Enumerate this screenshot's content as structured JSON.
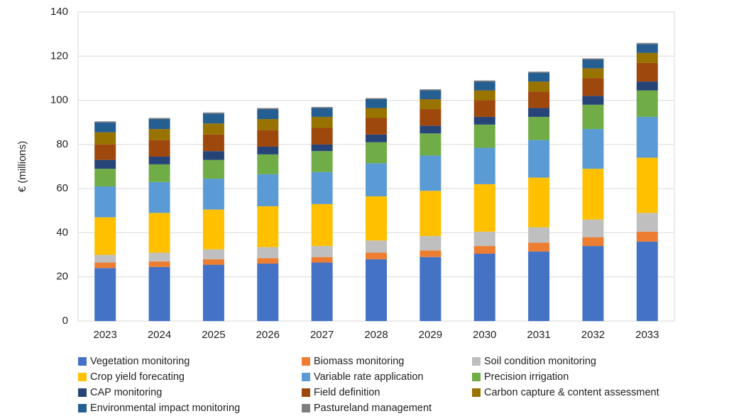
{
  "chart_data": {
    "type": "stacked_bar",
    "y_label": "€ (millions)",
    "categories": [
      "2023",
      "2024",
      "2025",
      "2026",
      "2027",
      "2028",
      "2029",
      "2030",
      "2031",
      "2032",
      "2033"
    ],
    "ylim": [
      0,
      140
    ],
    "yticks": [
      0,
      20,
      40,
      60,
      80,
      100,
      120,
      140
    ],
    "grid": true,
    "series": [
      {
        "name": "Vegetation monitoring",
        "color": "#4472c4",
        "values": [
          24,
          24.5,
          25.5,
          26,
          26.5,
          28,
          29,
          30.5,
          31.5,
          34,
          36
        ]
      },
      {
        "name": "Biomass monitoring",
        "color": "#ed7d31",
        "values": [
          2.5,
          2.5,
          2.5,
          2.5,
          2.5,
          3,
          3,
          3.5,
          4,
          4,
          4.5
        ]
      },
      {
        "name": "Soil condition monitoring",
        "color": "#bfbfbf",
        "values": [
          3.5,
          4,
          4.5,
          5,
          5,
          5.5,
          6.5,
          6.5,
          7,
          8,
          8.5
        ]
      },
      {
        "name": "Crop yield forecating",
        "color": "#ffc000",
        "values": [
          17,
          18,
          18,
          18.5,
          19,
          20,
          20.5,
          21.5,
          22.5,
          23,
          25
        ]
      },
      {
        "name": "Variable rate application",
        "color": "#5b9bd5",
        "values": [
          14,
          14,
          14,
          14.5,
          14.5,
          15,
          16,
          16.5,
          17,
          18,
          18.5
        ]
      },
      {
        "name": "Precision irrigation",
        "color": "#70ad47",
        "values": [
          8,
          8,
          8.5,
          9,
          9.5,
          9.5,
          10,
          10.5,
          10.5,
          11,
          12
        ]
      },
      {
        "name": "CAP monitoring",
        "color": "#264478",
        "values": [
          4,
          3.5,
          4,
          3.5,
          3,
          3.5,
          3.5,
          3.5,
          4,
          4,
          4
        ]
      },
      {
        "name": "Field definition",
        "color": "#9e480e",
        "values": [
          7,
          7.5,
          7.5,
          7.5,
          7.5,
          7.5,
          7.5,
          7.5,
          7.5,
          8,
          8.5
        ]
      },
      {
        "name": "Carbon capture & content assessment",
        "color": "#997300",
        "values": [
          5.5,
          5,
          5,
          5,
          5,
          4.5,
          4.5,
          4.5,
          4.5,
          4.5,
          4.5
        ]
      },
      {
        "name": "Environmental impact monitoring",
        "color": "#255e91",
        "values": [
          4.5,
          4.5,
          4.5,
          4.5,
          4,
          4,
          4,
          4,
          4,
          4,
          4
        ]
      },
      {
        "name": "Pastureland management",
        "color": "#7f7f7f",
        "values": [
          0.5,
          0.5,
          0.5,
          0.5,
          0.5,
          0.5,
          0.5,
          0.5,
          0.5,
          0.5,
          0.5
        ]
      }
    ]
  }
}
